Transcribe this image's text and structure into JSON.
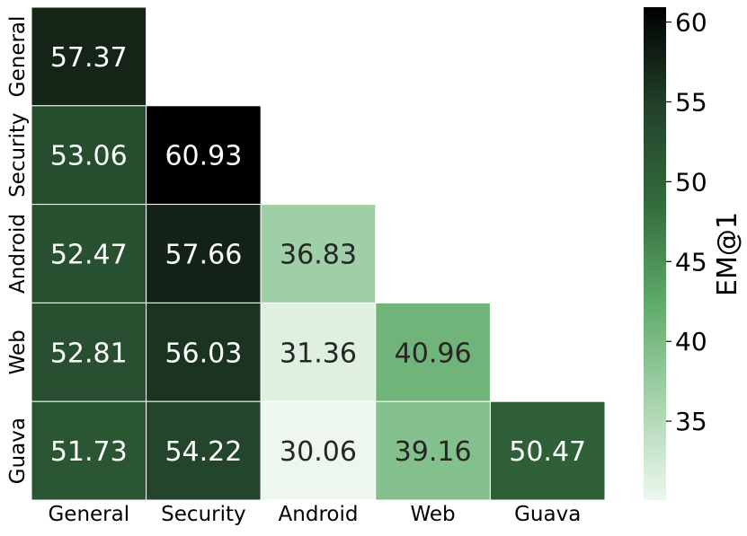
{
  "chart_data": {
    "type": "heatmap",
    "x_categories": [
      "General",
      "Security",
      "Android",
      "Web",
      "Guava"
    ],
    "y_categories": [
      "General",
      "Security",
      "Android",
      "Web",
      "Guava"
    ],
    "values": [
      [
        57.37,
        null,
        null,
        null,
        null
      ],
      [
        53.06,
        60.93,
        null,
        null,
        null
      ],
      [
        52.47,
        57.66,
        36.83,
        null,
        null
      ],
      [
        52.81,
        56.03,
        31.36,
        40.96,
        null
      ],
      [
        51.73,
        54.22,
        30.06,
        39.16,
        50.47
      ]
    ],
    "mask": "upper-triangle",
    "colorbar": {
      "label": "EM@1",
      "range": [
        30.06,
        60.93
      ],
      "ticks": [
        35,
        40,
        45,
        50,
        55,
        60
      ],
      "colors": [
        "#eef7ee",
        "#a6d3ac",
        "#5faa6a",
        "#336c3d",
        "#22412a",
        "#000000"
      ]
    }
  }
}
